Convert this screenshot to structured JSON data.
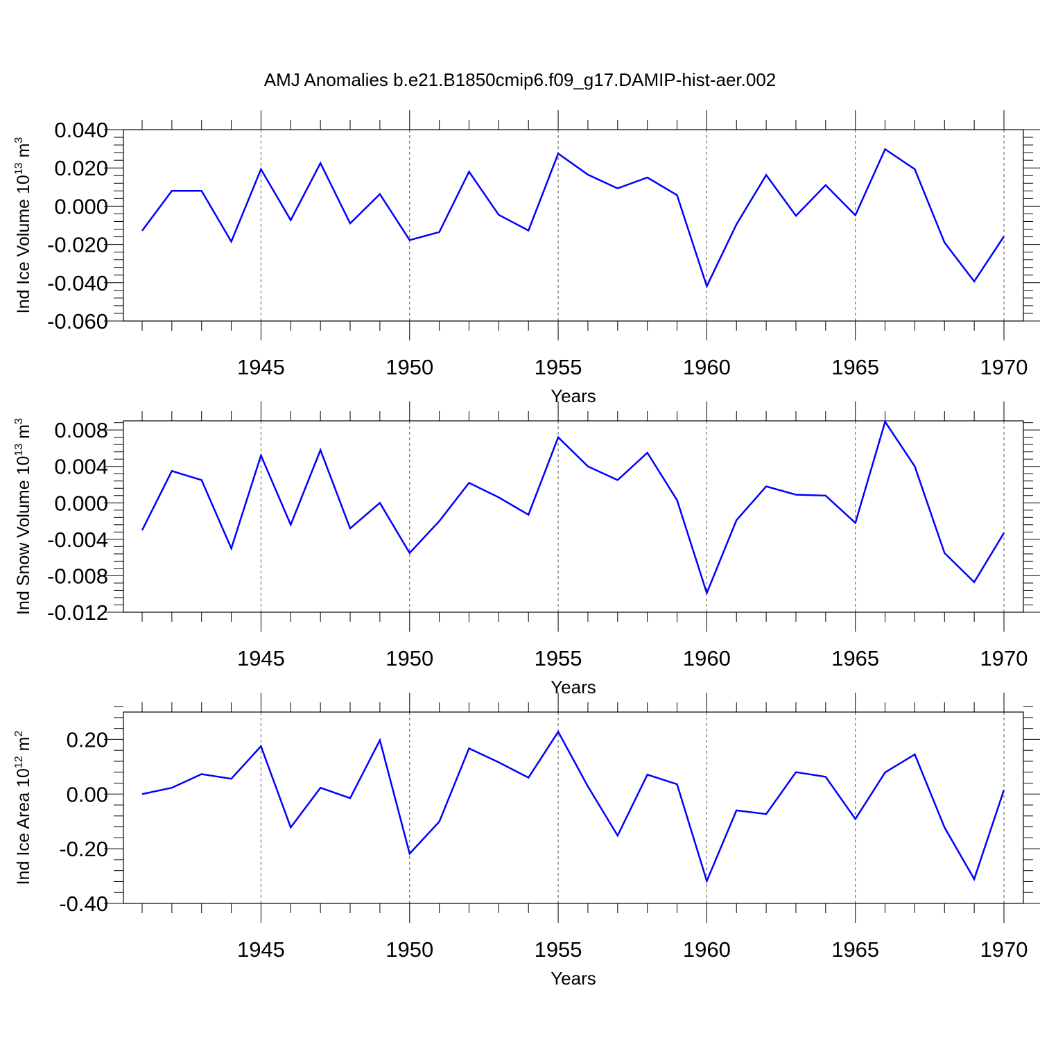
{
  "title": "AMJ Anomalies b.e21.B1850cmip6.f09_g17.DAMIP-hist-aer.002",
  "line_color": "#0000ff",
  "chart_data": [
    {
      "type": "line",
      "ylabel": "Ind Ice Volume 10^13 m^3",
      "ylabel_parts": {
        "base": "Ind Ice Volume 10",
        "exp1": "13",
        "mid": " m",
        "exp2": "3"
      },
      "xlabel": "Years",
      "xlim": [
        1941,
        1970
      ],
      "ylim": [
        -0.06,
        0.04
      ],
      "yticks": [
        0.04,
        0.02,
        0.0,
        -0.02,
        -0.04,
        -0.06
      ],
      "ytick_labels": [
        "0.040",
        "0.020",
        "0.000",
        "-0.020",
        "-0.040",
        "-0.060"
      ],
      "xticks": [
        1945,
        1950,
        1955,
        1960,
        1965,
        1970
      ],
      "xtick_labels": [
        "1945",
        "1950",
        "1955",
        "1960",
        "1965",
        "1970"
      ],
      "grid": "vertical dashed at major x ticks",
      "x": [
        1941,
        1942,
        1943,
        1944,
        1945,
        1946,
        1947,
        1948,
        1949,
        1950,
        1951,
        1952,
        1953,
        1954,
        1955,
        1956,
        1957,
        1958,
        1959,
        1960,
        1961,
        1962,
        1963,
        1964,
        1965,
        1966,
        1967,
        1968,
        1969,
        1970
      ],
      "y": [
        -0.0128,
        0.008,
        0.008,
        -0.0185,
        0.0193,
        -0.0073,
        0.0225,
        -0.009,
        0.0063,
        -0.0177,
        -0.0135,
        0.018,
        -0.0045,
        -0.0127,
        0.0275,
        0.0165,
        0.0093,
        0.015,
        0.0058,
        -0.0418,
        -0.0095,
        0.0163,
        -0.005,
        0.011,
        -0.0047,
        0.0298,
        0.0193,
        -0.019,
        -0.0393,
        -0.0158
      ]
    },
    {
      "type": "line",
      "ylabel": "Ind Snow Volume 10^13 m^3",
      "ylabel_parts": {
        "base": "Ind Snow Volume 10",
        "exp1": "13",
        "mid": " m",
        "exp2": "3"
      },
      "xlabel": "Years",
      "xlim": [
        1941,
        1970
      ],
      "ylim": [
        -0.012,
        0.009
      ],
      "yticks": [
        0.008,
        0.004,
        0.0,
        -0.004,
        -0.008,
        -0.012
      ],
      "ytick_labels": [
        "0.008",
        "0.004",
        "0.000",
        "-0.004",
        "-0.008",
        "-0.012"
      ],
      "xticks": [
        1945,
        1950,
        1955,
        1960,
        1965,
        1970
      ],
      "xtick_labels": [
        "1945",
        "1950",
        "1955",
        "1960",
        "1965",
        "1970"
      ],
      "grid": "vertical dashed at major x ticks",
      "x": [
        1941,
        1942,
        1943,
        1944,
        1945,
        1946,
        1947,
        1948,
        1949,
        1950,
        1951,
        1952,
        1953,
        1954,
        1955,
        1956,
        1957,
        1958,
        1959,
        1960,
        1961,
        1962,
        1963,
        1964,
        1965,
        1966,
        1967,
        1968,
        1969,
        1970
      ],
      "y": [
        -0.003,
        0.0035,
        0.0025,
        -0.005,
        0.0052,
        -0.0024,
        0.0058,
        -0.0028,
        0.0,
        -0.0055,
        -0.002,
        0.0022,
        0.0006,
        -0.0013,
        0.0072,
        0.004,
        0.0025,
        0.0055,
        0.0003,
        -0.0099,
        -0.0019,
        0.0018,
        0.0009,
        0.0008,
        -0.0022,
        0.0089,
        0.004,
        -0.0055,
        -0.0087,
        -0.0033
      ]
    },
    {
      "type": "line",
      "ylabel": "Ind Ice Area 10^12 m^2",
      "ylabel_parts": {
        "base": "Ind Ice Area 10",
        "exp1": "12",
        "mid": " m",
        "exp2": "2"
      },
      "xlabel": "Years",
      "xlim": [
        1941,
        1970
      ],
      "ylim": [
        -0.4,
        0.3
      ],
      "yticks": [
        0.2,
        0.0,
        -0.2,
        -0.4
      ],
      "ytick_labels": [
        "0.20",
        "0.00",
        "-0.20",
        "-0.40"
      ],
      "xticks": [
        1945,
        1950,
        1955,
        1960,
        1965,
        1970
      ],
      "xtick_labels": [
        "1945",
        "1950",
        "1955",
        "1960",
        "1965",
        "1970"
      ],
      "grid": "vertical dashed at major x ticks",
      "x": [
        1941,
        1942,
        1943,
        1944,
        1945,
        1946,
        1947,
        1948,
        1949,
        1950,
        1951,
        1952,
        1953,
        1954,
        1955,
        1956,
        1957,
        1958,
        1959,
        1960,
        1961,
        1962,
        1963,
        1964,
        1965,
        1966,
        1967,
        1968,
        1969,
        1970
      ],
      "y": [
        0.0,
        0.023,
        0.073,
        0.056,
        0.175,
        -0.122,
        0.023,
        -0.015,
        0.197,
        -0.218,
        -0.101,
        0.167,
        0.116,
        0.06,
        0.228,
        0.028,
        -0.152,
        0.071,
        0.036,
        -0.318,
        -0.06,
        -0.073,
        0.08,
        0.063,
        -0.091,
        0.079,
        0.145,
        -0.122,
        -0.311,
        0.015
      ]
    }
  ]
}
